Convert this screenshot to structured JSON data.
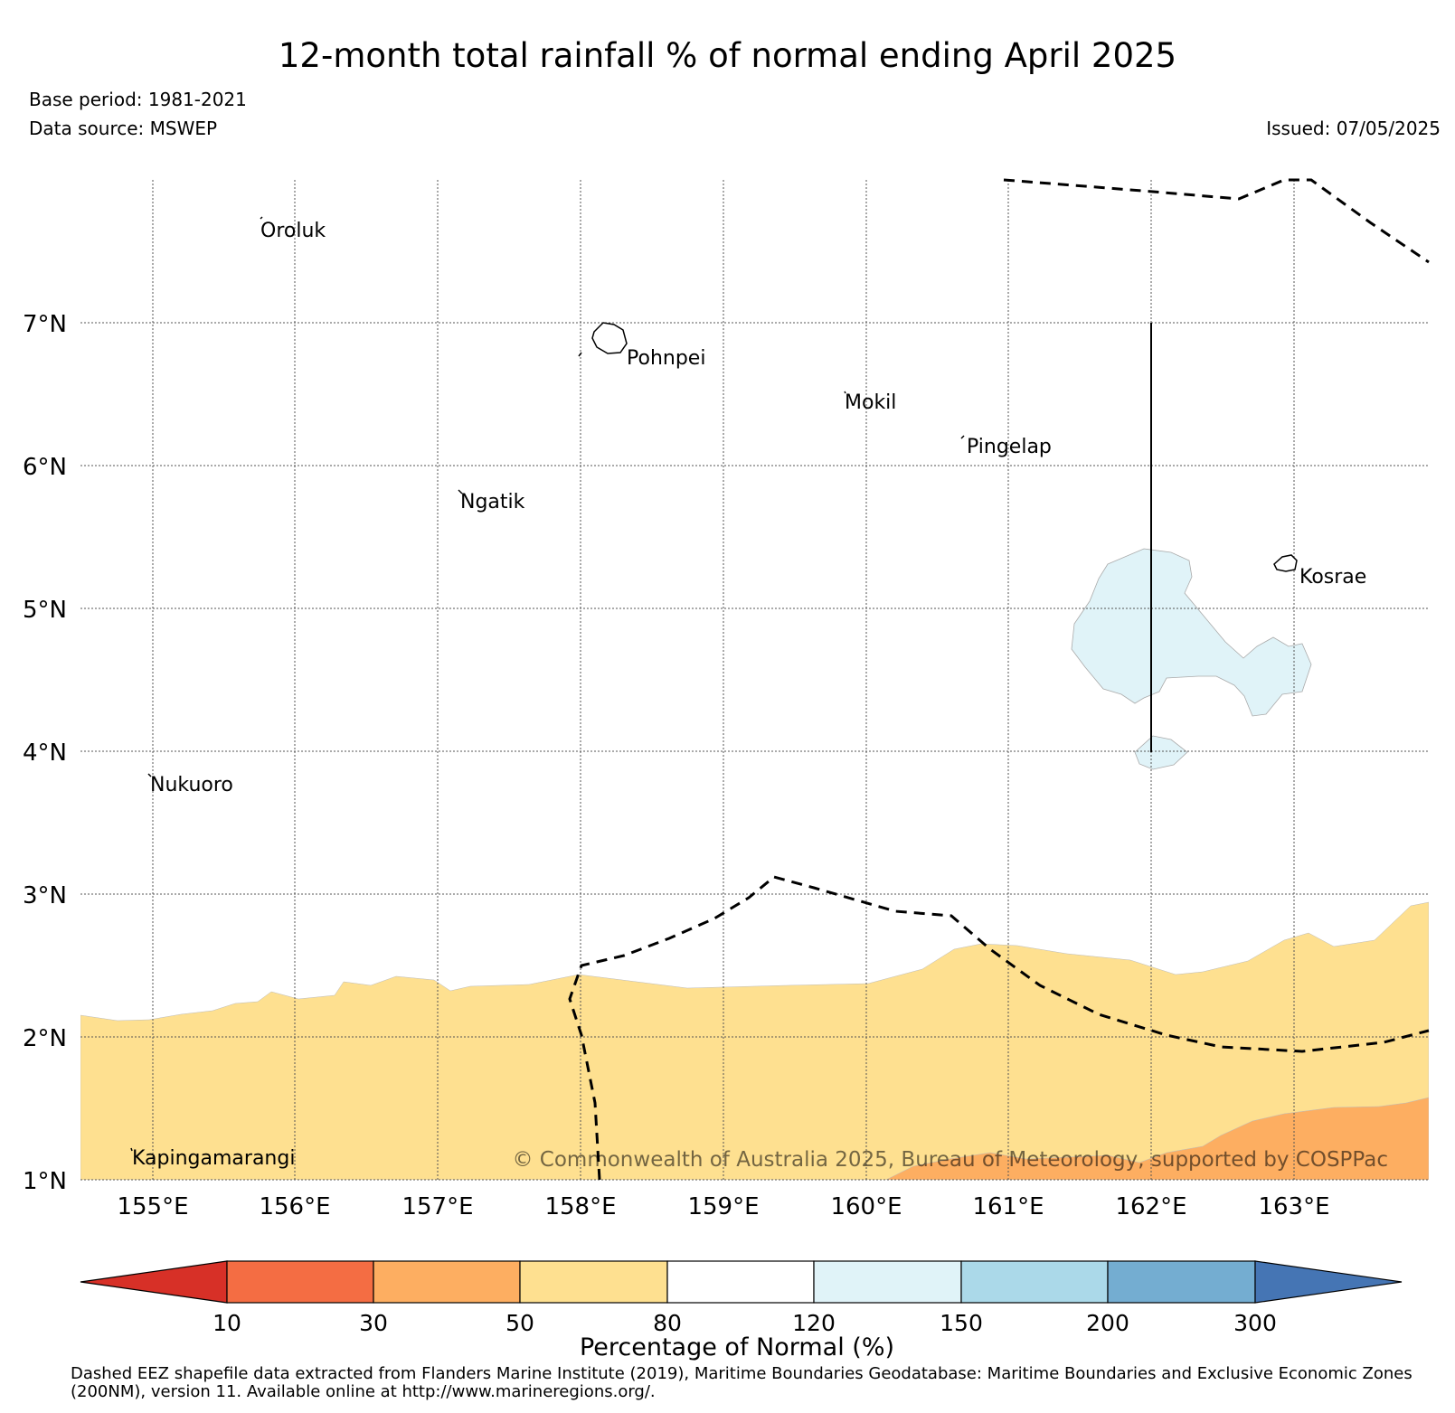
{
  "title": "12-month total rainfall % of normal ending April 2025",
  "base_period": "Base period: 1981-2021",
  "data_source": "Data source: MSWEP",
  "issued": "Issued: 07/05/2025",
  "copyright": "© Commonwealth of Australia 2025, Bureau of Meteorology, supported by COSPPac",
  "map": {
    "lon_range": [
      154.5,
      164.0
    ],
    "lat_range": [
      1.0,
      8.0
    ],
    "lon_ticks": [
      "155°E",
      "156°E",
      "157°E",
      "158°E",
      "159°E",
      "160°E",
      "161°E",
      "162°E",
      "163°E"
    ],
    "lat_ticks": [
      "1°N",
      "2°N",
      "3°N",
      "4°N",
      "5°N",
      "6°N",
      "7°N"
    ],
    "grid": true,
    "places": [
      {
        "name": "Oroluk",
        "lon": 155.7,
        "lat": 7.6
      },
      {
        "name": "Pohnpei",
        "lon": 158.3,
        "lat": 6.8
      },
      {
        "name": "Mokil",
        "lon": 159.8,
        "lat": 6.5
      },
      {
        "name": "Pingelap",
        "lon": 160.7,
        "lat": 6.2
      },
      {
        "name": "Ngatik",
        "lon": 157.2,
        "lat": 5.8
      },
      {
        "name": "Kosrae",
        "lon": 163.0,
        "lat": 5.3
      },
      {
        "name": "Nukuoro",
        "lon": 155.0,
        "lat": 3.85
      },
      {
        "name": "Kapingamarangi",
        "lon": 154.9,
        "lat": 1.2
      }
    ]
  },
  "colorbar": {
    "label": "Percentage of Normal (%)",
    "ticks": [
      "10",
      "30",
      "50",
      "80",
      "120",
      "150",
      "200",
      "300"
    ],
    "colors": [
      "#d73027",
      "#f46d43",
      "#fdae61",
      "#fee090",
      "#ffffff",
      "#e0f3f8",
      "#abd9e9",
      "#74add1",
      "#4575b4"
    ]
  },
  "footnote": "Dashed EEZ shapefile data extracted from Flanders Marine Institute (2019), Maritime Boundaries Geodatabase: Maritime Boundaries and Exclusive Economic Zones (200NM), version 11. Available online at http://www.marineregions.org/."
}
